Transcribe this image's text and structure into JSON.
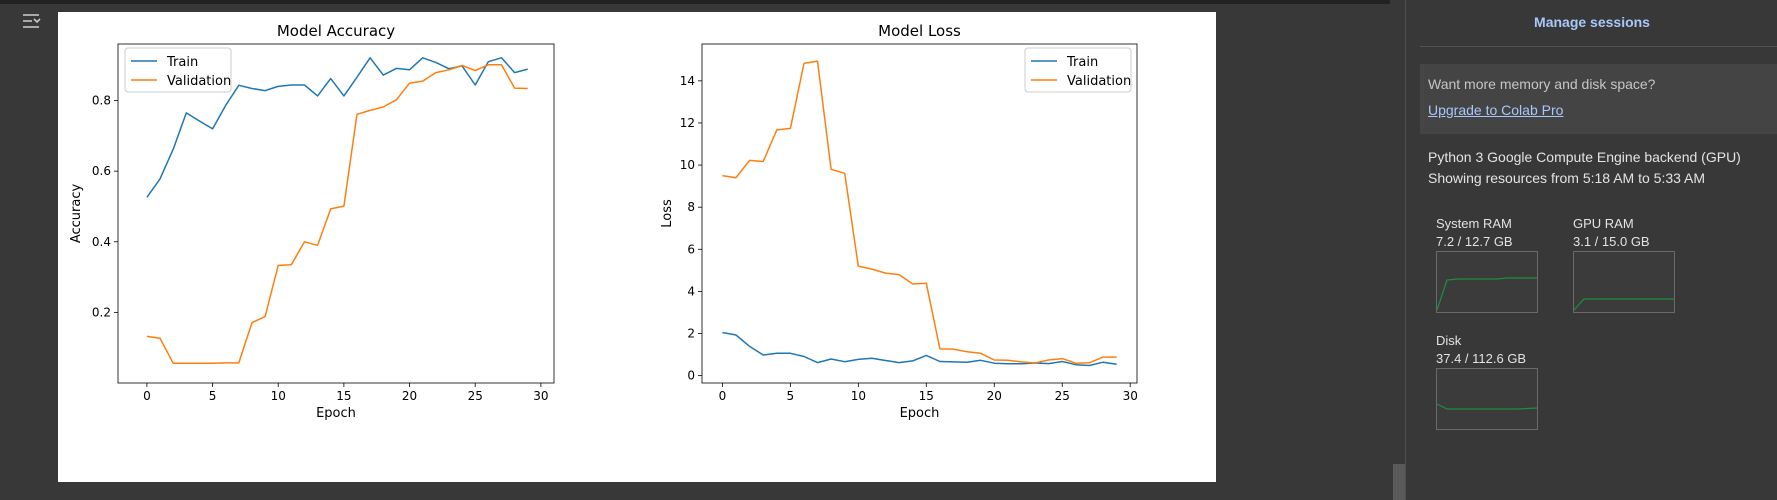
{
  "panel": {
    "manage_sessions": "Manage sessions",
    "upsell_text": "Want more memory and disk space?",
    "upsell_link": "Upgrade to Colab Pro",
    "backend": "Python 3 Google Compute Engine backend (GPU)",
    "showing": "Showing resources from 5:18 AM to 5:33 AM",
    "resources": [
      {
        "label": "System RAM",
        "value": "7.2 / 12.7 GB",
        "color": "#1e8e3e"
      },
      {
        "label": "GPU RAM",
        "value": "3.1 / 15.0 GB",
        "color": "#1e8e3e"
      },
      {
        "label": "Disk",
        "value": "37.4 / 112.6 GB",
        "color": "#1e8e3e"
      }
    ]
  },
  "toolbar": {
    "toggle_icon": "output-toggle-icon"
  },
  "chart_data": [
    {
      "type": "line",
      "title": "Model Accuracy",
      "xlabel": "Epoch",
      "ylabel": "Accuracy",
      "xlim": [
        -2.2,
        31
      ],
      "ylim": [
        0.0,
        0.96
      ],
      "xticks": [
        "0",
        "5",
        "10",
        "15",
        "20",
        "25",
        "30"
      ],
      "yticks": [
        "0.2",
        "0.4",
        "0.6",
        "0.8"
      ],
      "legend": "top-left",
      "x": [
        0,
        1,
        2,
        3,
        4,
        5,
        6,
        7,
        8,
        9,
        10,
        11,
        12,
        13,
        14,
        15,
        16,
        17,
        18,
        19,
        20,
        21,
        22,
        23,
        24,
        25,
        26,
        27,
        28,
        29
      ],
      "series": [
        {
          "name": "Train",
          "color": "#1f77b4",
          "values": [
            0.526,
            0.578,
            0.662,
            0.765,
            0.742,
            0.72,
            0.786,
            0.843,
            0.834,
            0.828,
            0.84,
            0.844,
            0.844,
            0.813,
            0.862,
            0.813,
            0.866,
            0.921,
            0.872,
            0.891,
            0.887,
            0.921,
            0.908,
            0.89,
            0.898,
            0.844,
            0.91,
            0.921,
            0.879,
            0.889
          ]
        },
        {
          "name": "Validation",
          "color": "#ff7f0e",
          "values": [
            0.132,
            0.127,
            0.056,
            0.056,
            0.056,
            0.056,
            0.057,
            0.057,
            0.171,
            0.188,
            0.333,
            0.335,
            0.4,
            0.39,
            0.493,
            0.501,
            0.761,
            0.772,
            0.782,
            0.802,
            0.849,
            0.855,
            0.879,
            0.887,
            0.899,
            0.885,
            0.901,
            0.901,
            0.835,
            0.834
          ]
        }
      ]
    },
    {
      "type": "line",
      "title": "Model Loss",
      "xlabel": "Epoch",
      "ylabel": "Loss",
      "xlim": [
        -1.5,
        30.5
      ],
      "ylim": [
        -0.35,
        15.75
      ],
      "xticks": [
        "0",
        "5",
        "10",
        "15",
        "20",
        "25",
        "30"
      ],
      "yticks": [
        "0",
        "2",
        "4",
        "6",
        "8",
        "10",
        "12",
        "14"
      ],
      "legend": "top-right",
      "x": [
        0,
        1,
        2,
        3,
        4,
        5,
        6,
        7,
        8,
        9,
        10,
        11,
        12,
        13,
        14,
        15,
        16,
        17,
        18,
        19,
        20,
        21,
        22,
        23,
        24,
        25,
        26,
        27,
        28,
        29
      ],
      "series": [
        {
          "name": "Train",
          "color": "#1f77b4",
          "values": [
            2.05,
            1.93,
            1.39,
            0.98,
            1.06,
            1.06,
            0.91,
            0.62,
            0.79,
            0.66,
            0.77,
            0.83,
            0.72,
            0.62,
            0.7,
            0.96,
            0.67,
            0.65,
            0.64,
            0.73,
            0.59,
            0.56,
            0.56,
            0.6,
            0.57,
            0.67,
            0.52,
            0.48,
            0.64,
            0.54
          ]
        },
        {
          "name": "Validation",
          "color": "#ff7f0e",
          "values": [
            9.5,
            9.4,
            10.22,
            10.17,
            11.67,
            11.74,
            14.83,
            14.94,
            9.8,
            9.61,
            5.2,
            5.06,
            4.87,
            4.8,
            4.35,
            4.39,
            1.27,
            1.26,
            1.13,
            1.06,
            0.74,
            0.73,
            0.65,
            0.6,
            0.74,
            0.81,
            0.59,
            0.61,
            0.88,
            0.88
          ]
        }
      ]
    }
  ]
}
